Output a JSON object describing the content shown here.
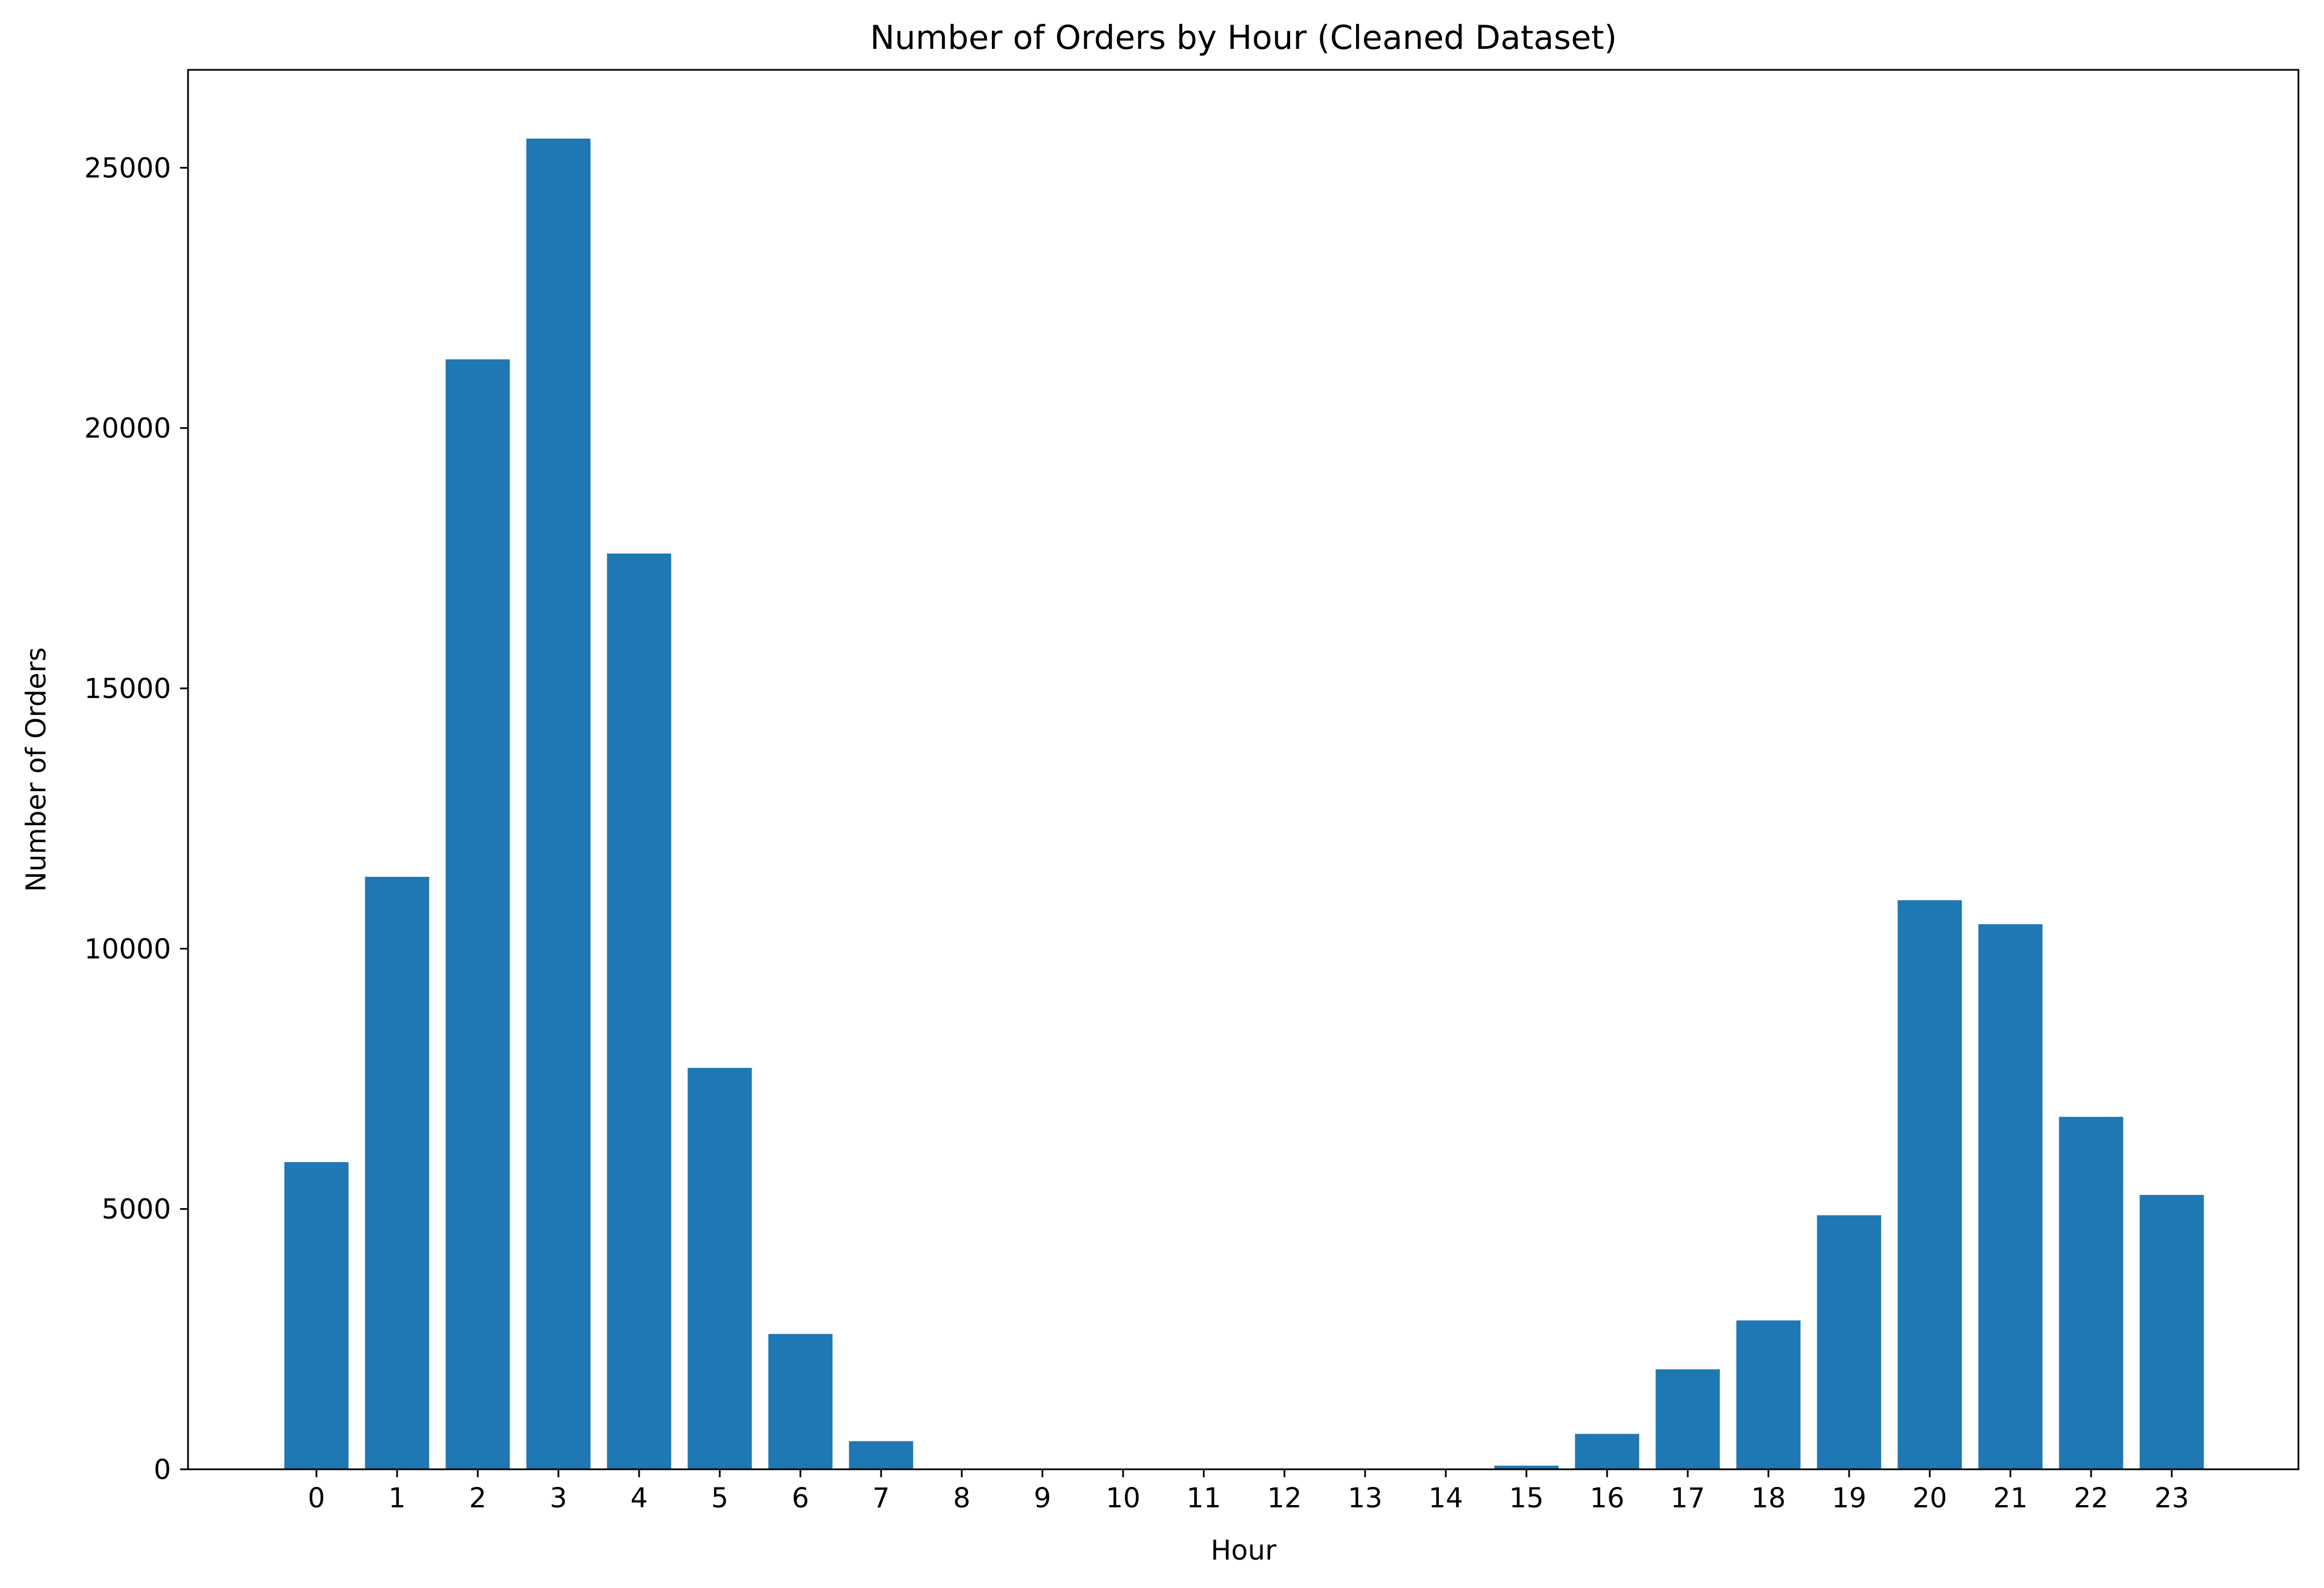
{
  "chart_data": {
    "type": "bar",
    "title": "Number of Orders by Hour (Cleaned Dataset)",
    "xlabel": "Hour",
    "ylabel": "Number of Orders",
    "categories": [
      "0",
      "1",
      "2",
      "3",
      "4",
      "5",
      "6",
      "7",
      "8",
      "9",
      "10",
      "11",
      "12",
      "13",
      "14",
      "15",
      "16",
      "17",
      "18",
      "19",
      "20",
      "21",
      "22",
      "23"
    ],
    "values": [
      5900,
      11380,
      21320,
      25560,
      17590,
      7710,
      2600,
      540,
      0,
      0,
      0,
      0,
      0,
      0,
      0,
      70,
      680,
      1920,
      2860,
      4880,
      10930,
      10470,
      6770,
      5270
    ],
    "ylim": [
      0,
      26880
    ],
    "yticks": [
      0,
      5000,
      10000,
      15000,
      20000,
      25000
    ],
    "bar_color": "#1f77b4",
    "grid": false,
    "legend": "none"
  }
}
